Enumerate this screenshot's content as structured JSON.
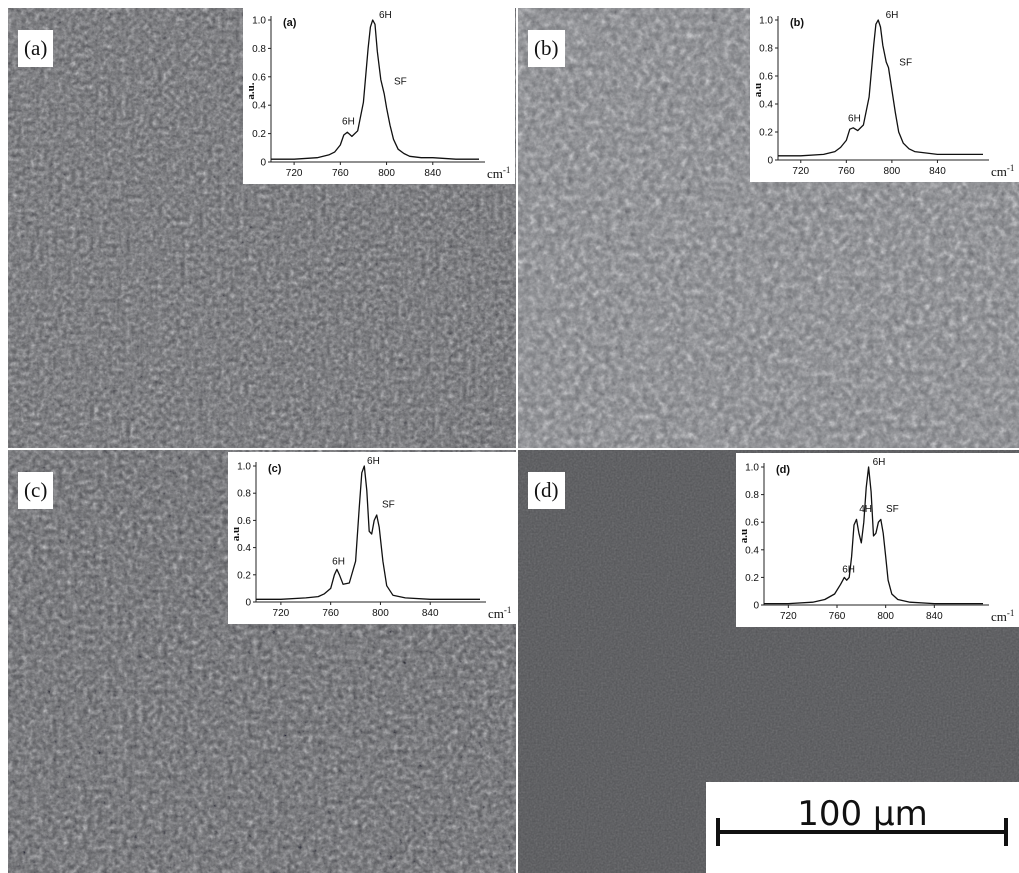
{
  "panels": [
    {
      "label": "(a)"
    },
    {
      "label": "(b)"
    },
    {
      "label": "(c)"
    },
    {
      "label": "(d)"
    }
  ],
  "scale_bar": {
    "text": "100 µm"
  },
  "colors": {
    "panel_a": "#5f6063",
    "panel_b": "#75777b",
    "panel_c": "#5c5d60",
    "panel_d": "#505154"
  },
  "chart_data": [
    {
      "type": "line",
      "title": "(a)",
      "ylabel": "a.u.",
      "xlabel": "cm-1",
      "xlim": [
        700,
        880
      ],
      "ylim": [
        0,
        1.0
      ],
      "xticks": [
        720,
        760,
        800,
        840
      ],
      "yticks": [
        0,
        0.2,
        0.4,
        0.6,
        0.8,
        1.0
      ],
      "ytick_labels": [
        "0",
        "0.2",
        "0.4",
        "0.6",
        "0.8",
        "1.0"
      ],
      "x": [
        700,
        720,
        740,
        750,
        755,
        760,
        763,
        766,
        770,
        775,
        780,
        784,
        786,
        788,
        790,
        792,
        795,
        798,
        800,
        803,
        806,
        810,
        815,
        820,
        830,
        840,
        860,
        880
      ],
      "y": [
        0.02,
        0.02,
        0.03,
        0.05,
        0.07,
        0.12,
        0.19,
        0.21,
        0.18,
        0.22,
        0.42,
        0.8,
        0.95,
        1.0,
        0.97,
        0.78,
        0.58,
        0.48,
        0.38,
        0.26,
        0.16,
        0.09,
        0.06,
        0.04,
        0.03,
        0.03,
        0.02,
        0.02
      ],
      "annotations": [
        {
          "text": "6H",
          "x": 790,
          "y": 1.0
        },
        {
          "text": "SF",
          "x": 803,
          "y": 0.53
        },
        {
          "text": "6H",
          "x": 758,
          "y": 0.25
        }
      ]
    },
    {
      "type": "line",
      "title": "(b)",
      "ylabel": "a.u",
      "xlabel": "cm-1",
      "xlim": [
        700,
        880
      ],
      "ylim": [
        0,
        1.0
      ],
      "xticks": [
        720,
        760,
        800,
        840
      ],
      "yticks": [
        0,
        0.2,
        0.4,
        0.6,
        0.8,
        1.0
      ],
      "ytick_labels": [
        "0",
        "0.2",
        "0.4",
        "0.6",
        "0.8",
        "1.0"
      ],
      "x": [
        700,
        720,
        740,
        750,
        755,
        760,
        763,
        766,
        770,
        775,
        780,
        784,
        786,
        788,
        790,
        792,
        795,
        797,
        800,
        803,
        806,
        810,
        815,
        820,
        830,
        840,
        860,
        880
      ],
      "y": [
        0.03,
        0.03,
        0.04,
        0.06,
        0.09,
        0.14,
        0.22,
        0.23,
        0.21,
        0.25,
        0.45,
        0.82,
        0.97,
        1.0,
        0.95,
        0.82,
        0.7,
        0.66,
        0.5,
        0.34,
        0.2,
        0.12,
        0.08,
        0.06,
        0.05,
        0.04,
        0.04,
        0.04
      ],
      "annotations": [
        {
          "text": "6H",
          "x": 791,
          "y": 1.0
        },
        {
          "text": "SF",
          "x": 803,
          "y": 0.66
        },
        {
          "text": "6H",
          "x": 758,
          "y": 0.26
        }
      ]
    },
    {
      "type": "line",
      "title": "(c)",
      "ylabel": "a.u",
      "xlabel": "cm-1",
      "xlim": [
        700,
        880
      ],
      "ylim": [
        0,
        1.0
      ],
      "xticks": [
        720,
        760,
        800,
        840
      ],
      "yticks": [
        0,
        0.2,
        0.4,
        0.6,
        0.8,
        1.0
      ],
      "ytick_labels": [
        "0",
        "0.2",
        "0.4",
        "0.6",
        "0.8",
        "1.0"
      ],
      "x": [
        700,
        720,
        740,
        750,
        755,
        760,
        763,
        765,
        767,
        770,
        775,
        780,
        783,
        785,
        787,
        789,
        791,
        793,
        795,
        797,
        799,
        802,
        805,
        810,
        820,
        840,
        860,
        880
      ],
      "y": [
        0.02,
        0.02,
        0.03,
        0.04,
        0.06,
        0.1,
        0.2,
        0.24,
        0.2,
        0.13,
        0.14,
        0.3,
        0.7,
        0.95,
        1.0,
        0.82,
        0.52,
        0.5,
        0.6,
        0.64,
        0.55,
        0.3,
        0.12,
        0.05,
        0.03,
        0.02,
        0.02,
        0.02
      ],
      "annotations": [
        {
          "text": "6H",
          "x": 786,
          "y": 1.0
        },
        {
          "text": "SF",
          "x": 798,
          "y": 0.68
        },
        {
          "text": "6H",
          "x": 758,
          "y": 0.26
        }
      ]
    },
    {
      "type": "line",
      "title": "(d)",
      "ylabel": "a.u",
      "xlabel": "cm-1",
      "xlim": [
        700,
        880
      ],
      "ylim": [
        0,
        1.0
      ],
      "xticks": [
        720,
        760,
        800,
        840
      ],
      "yticks": [
        0,
        0.2,
        0.4,
        0.6,
        0.8,
        1.0
      ],
      "ytick_labels": [
        "0",
        "0.2",
        "0.4",
        "0.6",
        "0.8",
        "1.0"
      ],
      "x": [
        700,
        720,
        740,
        750,
        758,
        763,
        766,
        768,
        770,
        772,
        774,
        776,
        778,
        780,
        782,
        784,
        786,
        788,
        790,
        792,
        794,
        796,
        798,
        800,
        802,
        805,
        810,
        820,
        840,
        880
      ],
      "y": [
        0.01,
        0.01,
        0.02,
        0.04,
        0.08,
        0.15,
        0.2,
        0.18,
        0.2,
        0.35,
        0.58,
        0.62,
        0.52,
        0.45,
        0.6,
        0.85,
        1.0,
        0.82,
        0.5,
        0.52,
        0.6,
        0.62,
        0.52,
        0.35,
        0.18,
        0.08,
        0.04,
        0.02,
        0.01,
        0.01
      ],
      "annotations": [
        {
          "text": "6H",
          "x": 786,
          "y": 1.0
        },
        {
          "text": "4H",
          "x": 775,
          "y": 0.66
        },
        {
          "text": "SF",
          "x": 797,
          "y": 0.66
        },
        {
          "text": "6H",
          "x": 761,
          "y": 0.22
        }
      ]
    }
  ]
}
